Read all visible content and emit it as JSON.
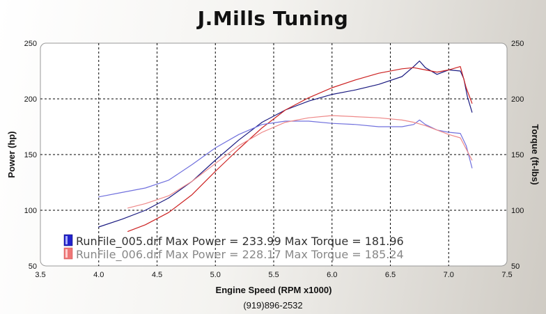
{
  "title": "J.Mills Tuning",
  "footer_phone": "(919)896-2532",
  "chart_data": {
    "type": "line",
    "title": "J.Mills Tuning",
    "xlabel": "Engine Speed (RPM x1000)",
    "ylabel_left": "Power (hp)",
    "ylabel_right": "Torque (ft-lbs)",
    "xlim": [
      3.5,
      7.5
    ],
    "ylim_left": [
      50,
      250
    ],
    "ylim_right": [
      50,
      250
    ],
    "x_ticks": [
      "3.5",
      "4.0",
      "4.5",
      "5.0",
      "5.5",
      "6.0",
      "6.5",
      "7.0",
      "7.5"
    ],
    "y_ticks_left": [
      "50",
      "100",
      "150",
      "200",
      "250"
    ],
    "y_ticks_right": [
      "50",
      "100",
      "150",
      "200",
      "250"
    ],
    "grid": true,
    "legend_position": "bottom-left",
    "colors": {
      "run005": "#1a1a80",
      "run006": "#cc2020",
      "run005_torque": "#7070dd",
      "run006_torque": "#ee8888"
    },
    "legend": [
      {
        "file": "RunFile_005.drf",
        "text": "RunFile_005.drf Max Power = 233.99 Max Torque = 181.96",
        "color": "#2020cc",
        "text_color": "#333333"
      },
      {
        "file": "RunFile_006.drf",
        "text": "RunFile_006.drf Max Power = 228.17 Max Torque = 185.24",
        "color": "#ee7777",
        "text_color": "#888888"
      }
    ],
    "series": [
      {
        "name": "RunFile_005.drf Power",
        "axis": "left",
        "color": "#1a1a80",
        "x": [
          4.0,
          4.2,
          4.4,
          4.6,
          4.8,
          5.0,
          5.2,
          5.4,
          5.6,
          5.8,
          6.0,
          6.2,
          6.4,
          6.6,
          6.7,
          6.75,
          6.8,
          6.9,
          7.0,
          7.1,
          7.13,
          7.16,
          7.2
        ],
        "y": [
          85,
          92,
          100,
          111,
          126,
          145,
          163,
          179,
          190,
          198,
          204,
          208,
          213,
          220,
          229,
          234,
          228,
          222,
          226,
          225,
          218,
          202,
          188
        ]
      },
      {
        "name": "RunFile_006.drf Power",
        "axis": "left",
        "color": "#cc2020",
        "x": [
          4.25,
          4.4,
          4.6,
          4.8,
          5.0,
          5.2,
          5.4,
          5.6,
          5.8,
          6.0,
          6.2,
          6.4,
          6.6,
          6.7,
          6.8,
          6.9,
          7.0,
          7.1,
          7.15,
          7.2
        ],
        "y": [
          81,
          87,
          98,
          114,
          135,
          155,
          174,
          190,
          201,
          210,
          217,
          223,
          227,
          228,
          226,
          224,
          226,
          229,
          210,
          196
        ]
      },
      {
        "name": "RunFile_005.drf Torque",
        "axis": "right",
        "color": "#7070dd",
        "x": [
          4.0,
          4.2,
          4.4,
          4.6,
          4.8,
          5.0,
          5.2,
          5.4,
          5.6,
          5.8,
          6.0,
          6.2,
          6.4,
          6.6,
          6.7,
          6.75,
          6.8,
          6.9,
          7.0,
          7.1,
          7.15,
          7.2
        ],
        "y": [
          112,
          116,
          120,
          127,
          141,
          156,
          168,
          177,
          180,
          180,
          178,
          177,
          175,
          175,
          177,
          181,
          177,
          172,
          170,
          169,
          158,
          138
        ]
      },
      {
        "name": "RunFile_006.drf Torque",
        "axis": "right",
        "color": "#ee8888",
        "x": [
          4.25,
          4.4,
          4.6,
          4.8,
          5.0,
          5.2,
          5.4,
          5.6,
          5.8,
          6.0,
          6.2,
          6.4,
          6.6,
          6.7,
          6.8,
          6.9,
          7.0,
          7.1,
          7.15,
          7.2
        ],
        "y": [
          102,
          106,
          113,
          126,
          142,
          158,
          170,
          179,
          183,
          185,
          184,
          183,
          181,
          179,
          176,
          172,
          168,
          165,
          155,
          145
        ]
      }
    ]
  }
}
